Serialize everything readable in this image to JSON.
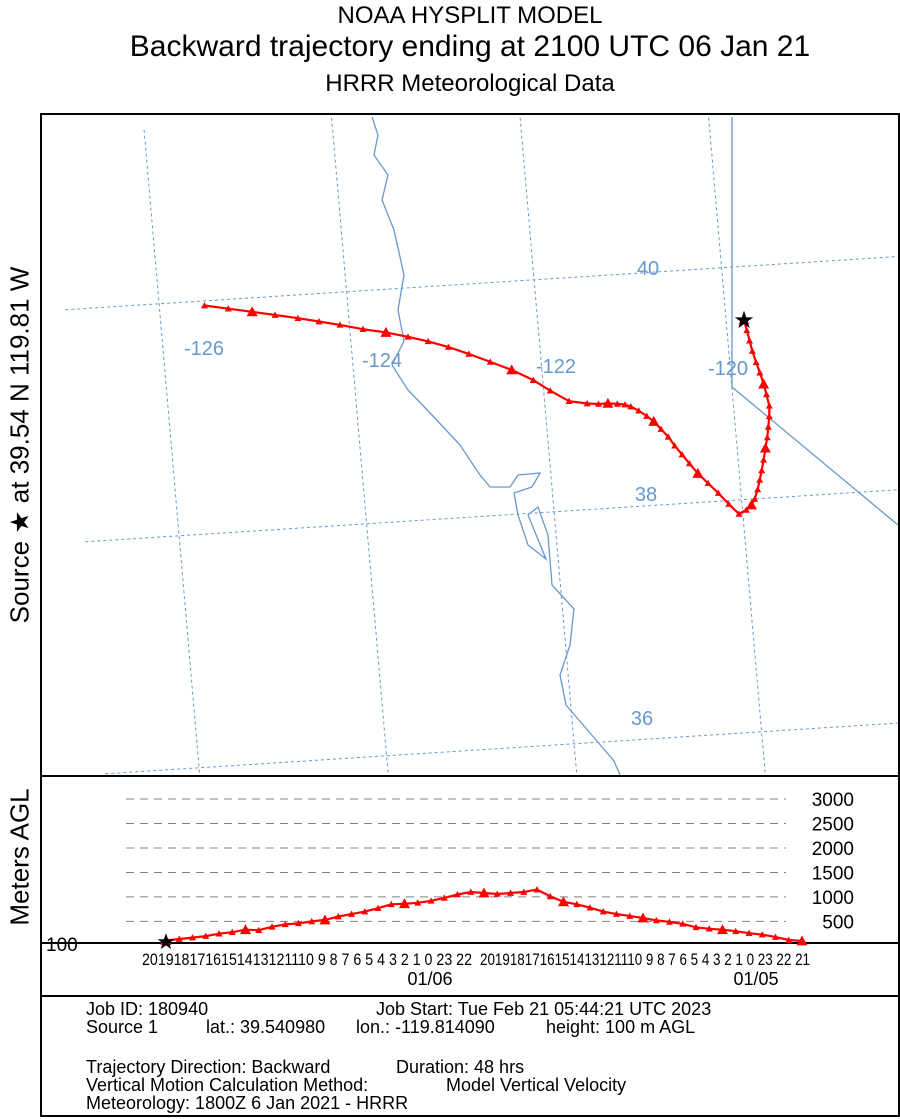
{
  "header": {
    "line1": "NOAA HYSPLIT MODEL",
    "line2": "Backward trajectory ending at 2100 UTC 06 Jan 21",
    "line3": "HRRR Meteorological Data"
  },
  "side_label": "Source ★  at    39.54 N   119.81 W",
  "alt_axis_label": "Meters AGL",
  "info": {
    "job_id": "Job ID: 180940",
    "job_start": "Job Start: Tue Feb 21 05:44:21 UTC 2023",
    "source": "Source 1",
    "lat": "lat.: 39.540980",
    "lon": "lon.: -119.814090",
    "height": "height: 100 m AGL",
    "direction": "Trajectory Direction: Backward",
    "duration": "Duration: 48 hrs",
    "vertical_method": "Vertical Motion Calculation Method:",
    "vertical_value": "Model Vertical Velocity",
    "meteorology": "Meteorology: 1800Z 6 Jan 2021 - HRRR"
  },
  "colors": {
    "trajectory": "#ff0000",
    "map_lines": "#6699cc",
    "grid": "#6699cc"
  },
  "chart_data": [
    {
      "type": "line",
      "title": "Backward trajectory ending at 2100 UTC 06 Jan 21",
      "subtitle": "HRRR Meteorological Data",
      "longitude_labels": [
        "-126",
        "-124",
        "-122",
        "-120"
      ],
      "latitude_labels": [
        "40",
        "38",
        "36"
      ],
      "source_marker": {
        "lon": -119.81,
        "lat": 39.54
      },
      "series": [
        {
          "lon": [
            -119.81,
            -119.79,
            -119.77,
            -119.75,
            -119.72,
            -119.69,
            -119.66,
            -119.64,
            -119.62,
            -119.63,
            -119.65,
            -119.67,
            -119.7,
            -119.73,
            -119.76,
            -119.79,
            -119.82,
            -119.86,
            -119.9,
            -119.96,
            -120.04,
            -120.14,
            -120.24,
            -120.34,
            -120.44,
            -120.52,
            -120.59,
            -120.66,
            -120.72,
            -120.79,
            -120.86,
            -120.93,
            -121.01,
            -121.09,
            -121.15,
            -121.23,
            -121.33,
            -121.43,
            -121.55,
            -121.74,
            -121.93,
            -122.1,
            -122.32,
            -122.54,
            -122.76,
            -122.97,
            -123.18,
            -123.39,
            -123.62,
            -123.86,
            -124.1,
            -124.32,
            -124.54,
            -124.78,
            -125.02,
            -125.27,
            -125.52
          ],
          "lat": [
            39.54,
            39.45,
            39.36,
            39.27,
            39.17,
            39.08,
            38.98,
            38.89,
            38.79,
            38.7,
            38.61,
            38.52,
            38.43,
            38.33,
            38.24,
            38.16,
            38.08,
            38.0,
            37.95,
            37.91,
            37.88,
            37.97,
            38.07,
            38.16,
            38.25,
            38.34,
            38.42,
            38.5,
            38.58,
            38.65,
            38.72,
            38.77,
            38.82,
            38.86,
            38.88,
            38.89,
            38.9,
            38.9,
            38.91,
            38.94,
            39.04,
            39.14,
            39.24,
            39.32,
            39.4,
            39.47,
            39.53,
            39.58,
            39.63,
            39.67,
            39.72,
            39.76,
            39.8,
            39.84,
            39.88,
            39.92,
            39.96
          ]
        }
      ]
    },
    {
      "type": "line",
      "ylabel": "Meters AGL",
      "y_ticks": [
        "3000",
        "2500",
        "2000",
        "1500",
        "1000",
        "500"
      ],
      "start_height_label": "100",
      "x_date_labels": [
        "01/06",
        "01/05"
      ],
      "hour_labels_day2": "2019181716151413121110 9 8 7 6 5 4 3 2 1 0 23 22",
      "hour_labels_day1": "2019181716151413121110 9 8 7 6 5 4 3 2 1 0 23 22 21",
      "series": [
        {
          "hours_back": [
            0,
            1,
            2,
            3,
            4,
            5,
            6,
            7,
            8,
            9,
            10,
            11,
            12,
            13,
            14,
            15,
            16,
            17,
            18,
            19,
            20,
            21,
            22,
            23,
            24,
            25,
            26,
            27,
            28,
            29,
            30,
            31,
            32,
            33,
            34,
            35,
            36,
            37,
            38,
            39,
            40,
            41,
            42,
            43,
            44,
            45,
            46,
            47,
            48
          ],
          "height": [
            100,
            120,
            180,
            230,
            260,
            300,
            330,
            350,
            380,
            450,
            490,
            520,
            570,
            610,
            650,
            700,
            780,
            850,
            900,
            1010,
            1150,
            1100,
            1080,
            1060,
            1080,
            1100,
            1050,
            980,
            920,
            880,
            860,
            850,
            770,
            700,
            650,
            600,
            530,
            500,
            460,
            440,
            390,
            320,
            330,
            280,
            250,
            200,
            170,
            140,
            110
          ]
        }
      ]
    }
  ]
}
